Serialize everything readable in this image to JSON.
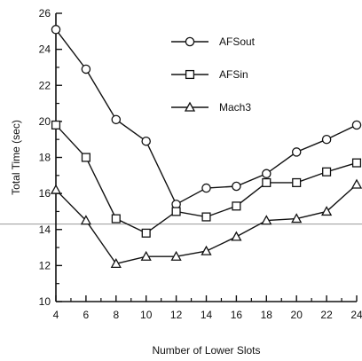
{
  "chart_data": {
    "type": "line",
    "xlabel": "Number of Lower Slots",
    "ylabel": "Total Time (sec)",
    "xlim": [
      4,
      24
    ],
    "ylim": [
      10,
      26
    ],
    "x": [
      4,
      6,
      8,
      10,
      12,
      14,
      16,
      18,
      20,
      22,
      24
    ],
    "xticks": [
      "4",
      "6",
      "8",
      "10",
      "12",
      "14",
      "16",
      "18",
      "20",
      "22",
      "24"
    ],
    "yticks": [
      "10",
      "12",
      "14",
      "16",
      "18",
      "20",
      "22",
      "24",
      "26"
    ],
    "grid": false,
    "legend_position": "top-right",
    "series": [
      {
        "name": "AFSout",
        "marker": "circle",
        "values": [
          25.1,
          22.9,
          20.1,
          18.9,
          15.4,
          16.3,
          16.4,
          17.1,
          18.3,
          19.0,
          19.8
        ]
      },
      {
        "name": "AFSin",
        "marker": "square",
        "values": [
          19.8,
          18.0,
          14.6,
          13.8,
          15.0,
          14.7,
          15.3,
          16.6,
          16.6,
          17.2,
          17.7
        ]
      },
      {
        "name": "Mach3",
        "marker": "triangle",
        "values": [
          16.2,
          14.5,
          12.1,
          12.5,
          12.5,
          12.8,
          13.6,
          14.5,
          14.6,
          15.0,
          16.5
        ]
      }
    ],
    "reference_line_y": 14.3
  }
}
